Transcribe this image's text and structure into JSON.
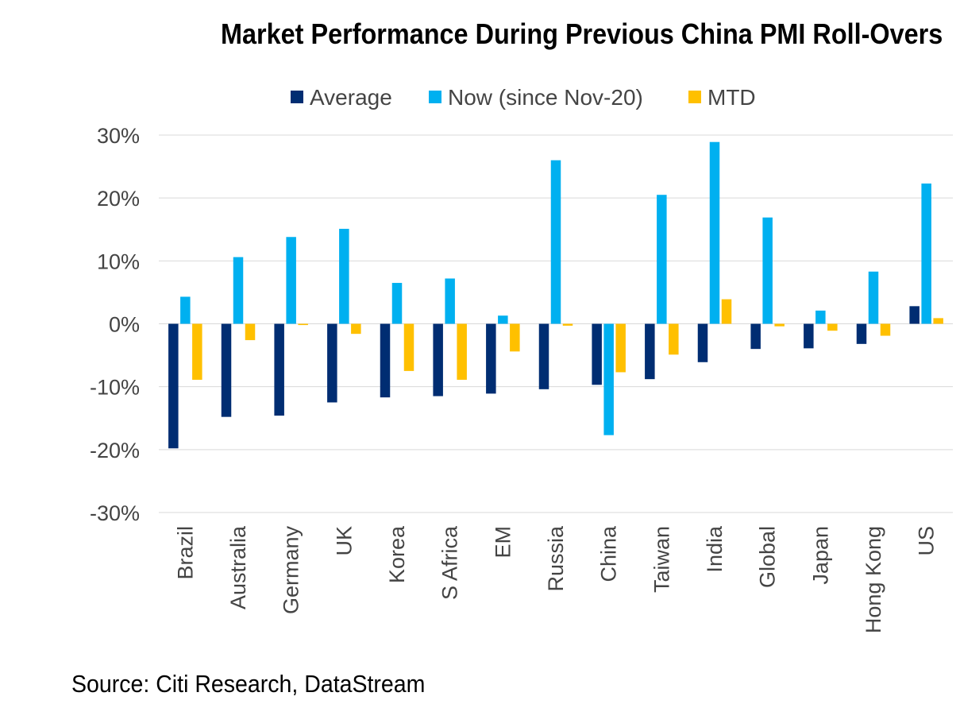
{
  "chart_data": {
    "type": "bar",
    "title": "Market Performance During Previous China PMI Roll-Overs",
    "categories": [
      "Brazil",
      "Australia",
      "Germany",
      "UK",
      "Korea",
      "S Africa",
      "EM",
      "Russia",
      "China",
      "Taiwan",
      "India",
      "Global",
      "Japan",
      "Hong Kong",
      "US"
    ],
    "series": [
      {
        "name": "Average",
        "color": "#002d72",
        "values": [
          -19.8,
          -14.8,
          -14.6,
          -12.5,
          -11.7,
          -11.5,
          -11.1,
          -10.4,
          -9.7,
          -8.8,
          -6.1,
          -4.0,
          -3.9,
          -3.2,
          2.8
        ]
      },
      {
        "name": "Now (since Nov-20)",
        "color": "#00b0f0",
        "values": [
          4.3,
          10.6,
          13.8,
          15.1,
          6.5,
          7.2,
          1.3,
          26.0,
          -17.7,
          20.5,
          28.9,
          16.9,
          2.1,
          8.3,
          22.3
        ]
      },
      {
        "name": "MTD",
        "color": "#ffc000",
        "values": [
          -8.9,
          -2.6,
          -0.2,
          -1.6,
          -7.5,
          -8.9,
          -4.4,
          -0.3,
          -7.7,
          -4.9,
          3.9,
          -0.4,
          -1.1,
          -1.9,
          0.9
        ]
      }
    ],
    "ylim": [
      -30,
      30
    ],
    "yticks": [
      -30,
      -20,
      -10,
      0,
      10,
      20,
      30
    ],
    "ytick_labels": [
      "-30%",
      "-20%",
      "-10%",
      "0%",
      "10%",
      "20%",
      "30%"
    ],
    "xlabel": "",
    "ylabel": "",
    "grid": true,
    "legend_position": "top-center"
  },
  "source": "Source: Citi Research, DataStream"
}
